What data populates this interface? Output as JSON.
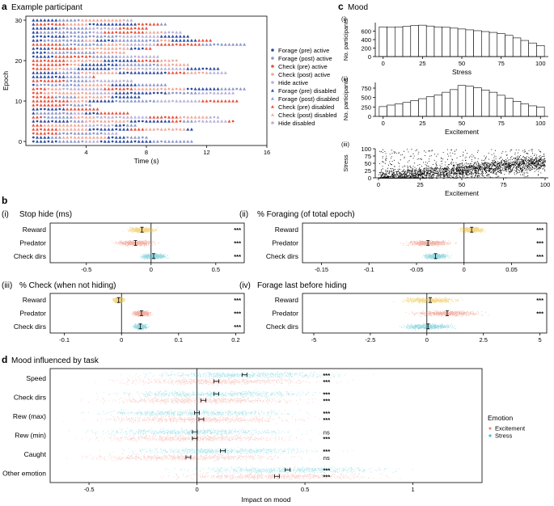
{
  "panels": {
    "a": {
      "letter": "a",
      "title": "Example participant"
    },
    "b": {
      "letter": "b"
    },
    "c": {
      "letter": "c",
      "title": "Mood"
    },
    "d": {
      "letter": "d",
      "title": "Mood influenced by task"
    }
  },
  "colors": {
    "forage": "#2b4aa0",
    "forage_post": "#8c96c8",
    "check": "#e8503a",
    "check_post": "#f0a898",
    "hide": "#b8b0d8",
    "reward": "#e8b820",
    "predator": "#e87058",
    "checkdirs": "#40b8c8",
    "excitement": "#f08878",
    "stress": "#40c0d0"
  },
  "chart_data": [
    {
      "id": "a",
      "type": "scatter",
      "title": "Example participant",
      "xlabel": "Time (s)",
      "ylabel": "Epoch",
      "xticks": [
        4,
        8,
        12,
        16
      ],
      "yticks": [
        0,
        10,
        20,
        30
      ],
      "xlim": [
        0,
        16
      ],
      "ylim": [
        -1,
        31
      ],
      "legend": [
        {
          "label": "Forage (pre) active",
          "marker": "dot",
          "color": "#2b4aa0"
        },
        {
          "label": "Forage (post) active",
          "marker": "dot",
          "color": "#8c96c8"
        },
        {
          "label": "Check (pre) active",
          "marker": "dot",
          "color": "#e8503a"
        },
        {
          "label": "Check (post) active",
          "marker": "dot",
          "color": "#f0a898"
        },
        {
          "label": "Hide active",
          "marker": "dot",
          "color": "#b8b0d8"
        },
        {
          "label": "Forage (pre) disabled",
          "marker": "tri",
          "color": "#2b4aa0"
        },
        {
          "label": "Forage (post) disabled",
          "marker": "tri",
          "color": "#8c96c8"
        },
        {
          "label": "Check (pre) disabled",
          "marker": "tri",
          "color": "#e8503a"
        },
        {
          "label": "Check (post) disabled",
          "marker": "tri",
          "color": "#f0a898"
        },
        {
          "label": "Hide disabled",
          "marker": "dot",
          "color": "#b8b0d8"
        }
      ]
    },
    {
      "id": "c-i",
      "type": "bar",
      "label": "(i)",
      "xlabel": "Stress",
      "ylabel": "No. participants",
      "xticks": [
        0,
        25,
        50,
        75,
        100
      ],
      "yticks": [
        0,
        200,
        400,
        600
      ],
      "ylim": [
        0,
        800
      ],
      "bin_width": 5,
      "values": [
        700,
        690,
        700,
        710,
        730,
        740,
        720,
        700,
        690,
        670,
        650,
        630,
        610,
        590,
        570,
        540,
        500,
        440,
        380,
        320,
        260
      ]
    },
    {
      "id": "c-ii",
      "type": "bar",
      "label": "(ii)",
      "xlabel": "Excitement",
      "ylabel": "No. participants",
      "xticks": [
        0,
        25,
        50,
        75,
        100
      ],
      "yticks": [
        0,
        250,
        500,
        750
      ],
      "ylim": [
        0,
        900
      ],
      "bin_width": 5,
      "values": [
        260,
        300,
        330,
        370,
        420,
        470,
        520,
        570,
        640,
        710,
        820,
        800,
        760,
        700,
        640,
        560,
        480,
        400,
        330,
        280,
        250
      ]
    },
    {
      "id": "c-iii",
      "type": "scatter",
      "label": "(iii)",
      "xlabel": "Excitement",
      "ylabel": "Stress",
      "xticks": [
        0,
        25,
        50,
        75,
        100
      ],
      "yticks": [
        0,
        25,
        50,
        75,
        100
      ],
      "xlim": [
        0,
        100
      ],
      "ylim": [
        0,
        100
      ]
    },
    {
      "id": "b-i",
      "type": "scatter",
      "label": "(i)",
      "title": "Stop hide (ms)",
      "categories": [
        "Reward",
        "Predator",
        "Check dirs"
      ],
      "means": [
        -0.07,
        -0.12,
        0.02
      ],
      "spread": [
        0.16,
        0.22,
        0.14
      ],
      "significance": [
        "***",
        "***",
        "***"
      ],
      "xticks": [
        -0.5,
        0.0,
        0.5
      ],
      "xlim": [
        -0.78,
        0.72
      ]
    },
    {
      "id": "b-ii",
      "type": "scatter",
      "label": "(ii)",
      "title": "% Foraging (of total epoch)",
      "categories": [
        "Reward",
        "Predator",
        "Check dirs"
      ],
      "means": [
        0.008,
        -0.038,
        -0.03
      ],
      "spread": [
        0.018,
        0.035,
        0.018
      ],
      "significance": [
        "***",
        "***",
        "***"
      ],
      "xticks": [
        -0.15,
        -0.1,
        -0.05,
        0.0,
        0.05
      ],
      "xlim": [
        -0.17,
        0.087
      ]
    },
    {
      "id": "b-iii",
      "type": "scatter",
      "label": "(iii)",
      "title": "% Check (when not hiding)",
      "categories": [
        "Reward",
        "Predator",
        "Check dirs"
      ],
      "means": [
        -0.005,
        0.035,
        0.033
      ],
      "spread": [
        0.014,
        0.022,
        0.018
      ],
      "significance": [
        "***",
        "***",
        "***"
      ],
      "xticks": [
        -0.1,
        0.0,
        0.1,
        0.2
      ],
      "xlim": [
        -0.125,
        0.215
      ]
    },
    {
      "id": "b-iv",
      "type": "scatter",
      "label": "(iv)",
      "title": "Forage last before hiding",
      "categories": [
        "Reward",
        "Predator",
        "Check dirs"
      ],
      "means": [
        0.15,
        0.9,
        0.05
      ],
      "spread": [
        1.8,
        2.2,
        1.6
      ],
      "significance": [
        "***",
        "***",
        ""
      ],
      "xticks": [
        -5.0,
        -2.5,
        0.0,
        2.5,
        5.0
      ],
      "xlim": [
        -5.5,
        5.3
      ]
    },
    {
      "id": "d",
      "type": "scatter",
      "title": "Mood influenced by task",
      "xlabel": "Impact on mood",
      "categories": [
        "Speed",
        "Check dirs",
        "Rew (max)",
        "Rew (min)",
        "Caught",
        "Other emotion"
      ],
      "series": [
        {
          "name": "Stress",
          "color": "#40c0d0",
          "means": [
            0.22,
            0.09,
            0.0,
            -0.01,
            0.12,
            0.42
          ],
          "sig": [
            "***",
            "***",
            "***",
            "ns",
            "***",
            "***"
          ]
        },
        {
          "name": "Excitement",
          "color": "#f08878",
          "means": [
            0.09,
            0.03,
            0.02,
            -0.01,
            -0.04,
            0.37
          ],
          "sig": [
            "***",
            "***",
            "***",
            "***",
            "ns",
            "***"
          ]
        }
      ],
      "xticks": [
        -0.5,
        0.0,
        0.5,
        1.0
      ],
      "xlim": [
        -0.68,
        1.32
      ],
      "legend_title": "Emotion",
      "legend": [
        "Excitement",
        "Stress"
      ]
    }
  ]
}
